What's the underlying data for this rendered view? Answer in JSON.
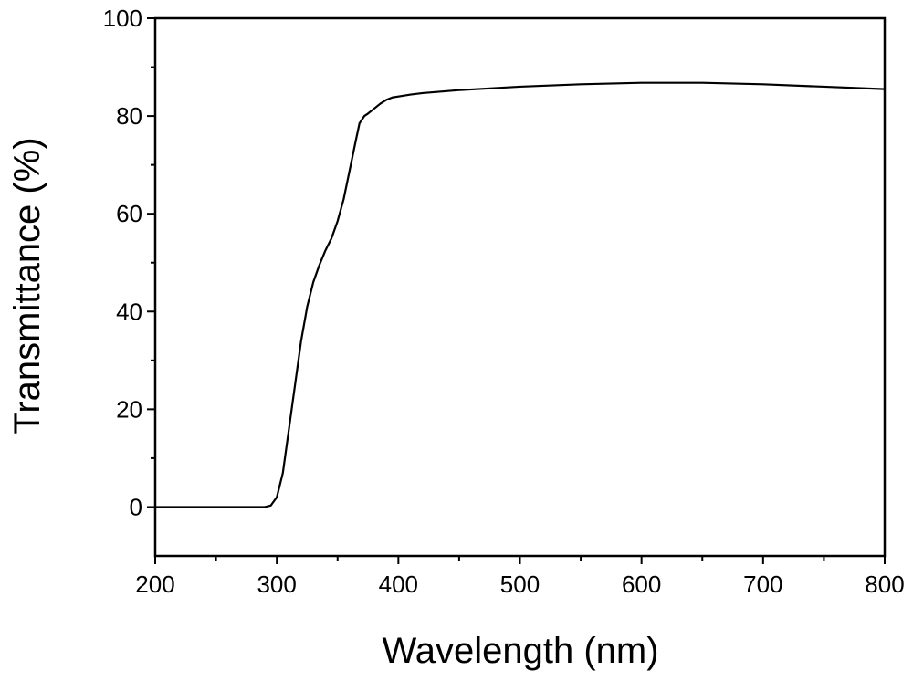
{
  "chart_data": {
    "type": "line",
    "title": "",
    "xlabel": "Wavelength (nm)",
    "ylabel": "Transmittance (%)",
    "xlim": [
      200,
      800
    ],
    "ylim": [
      -10,
      100
    ],
    "xticks": [
      200,
      300,
      400,
      500,
      600,
      700,
      800
    ],
    "xtick_labels": [
      "200",
      "300",
      "400",
      "500",
      "600",
      "700",
      "800"
    ],
    "yticks": [
      0,
      20,
      40,
      60,
      80,
      100
    ],
    "ytick_labels": [
      "0",
      "20",
      "40",
      "60",
      "80",
      "100"
    ],
    "grid": false,
    "legend": "none",
    "line_color": "#000000",
    "series": [
      {
        "x": [
          200,
          250,
          280,
          290,
          295,
          300,
          305,
          310,
          315,
          320,
          325,
          330,
          335,
          340,
          345,
          350,
          355,
          360,
          365,
          368,
          372,
          375,
          380,
          385,
          390,
          395,
          400,
          410,
          420,
          450,
          500,
          550,
          600,
          650,
          700,
          750,
          800
        ],
        "y": [
          0,
          0,
          0,
          0,
          0.3,
          2,
          7,
          16,
          25,
          34,
          41,
          46,
          49.5,
          52.5,
          55,
          58.5,
          63,
          69,
          75,
          78.5,
          80,
          80.5,
          81.5,
          82.5,
          83.3,
          83.8,
          84,
          84.4,
          84.7,
          85.3,
          86,
          86.5,
          86.8,
          86.8,
          86.5,
          86,
          85.5
        ]
      }
    ]
  }
}
